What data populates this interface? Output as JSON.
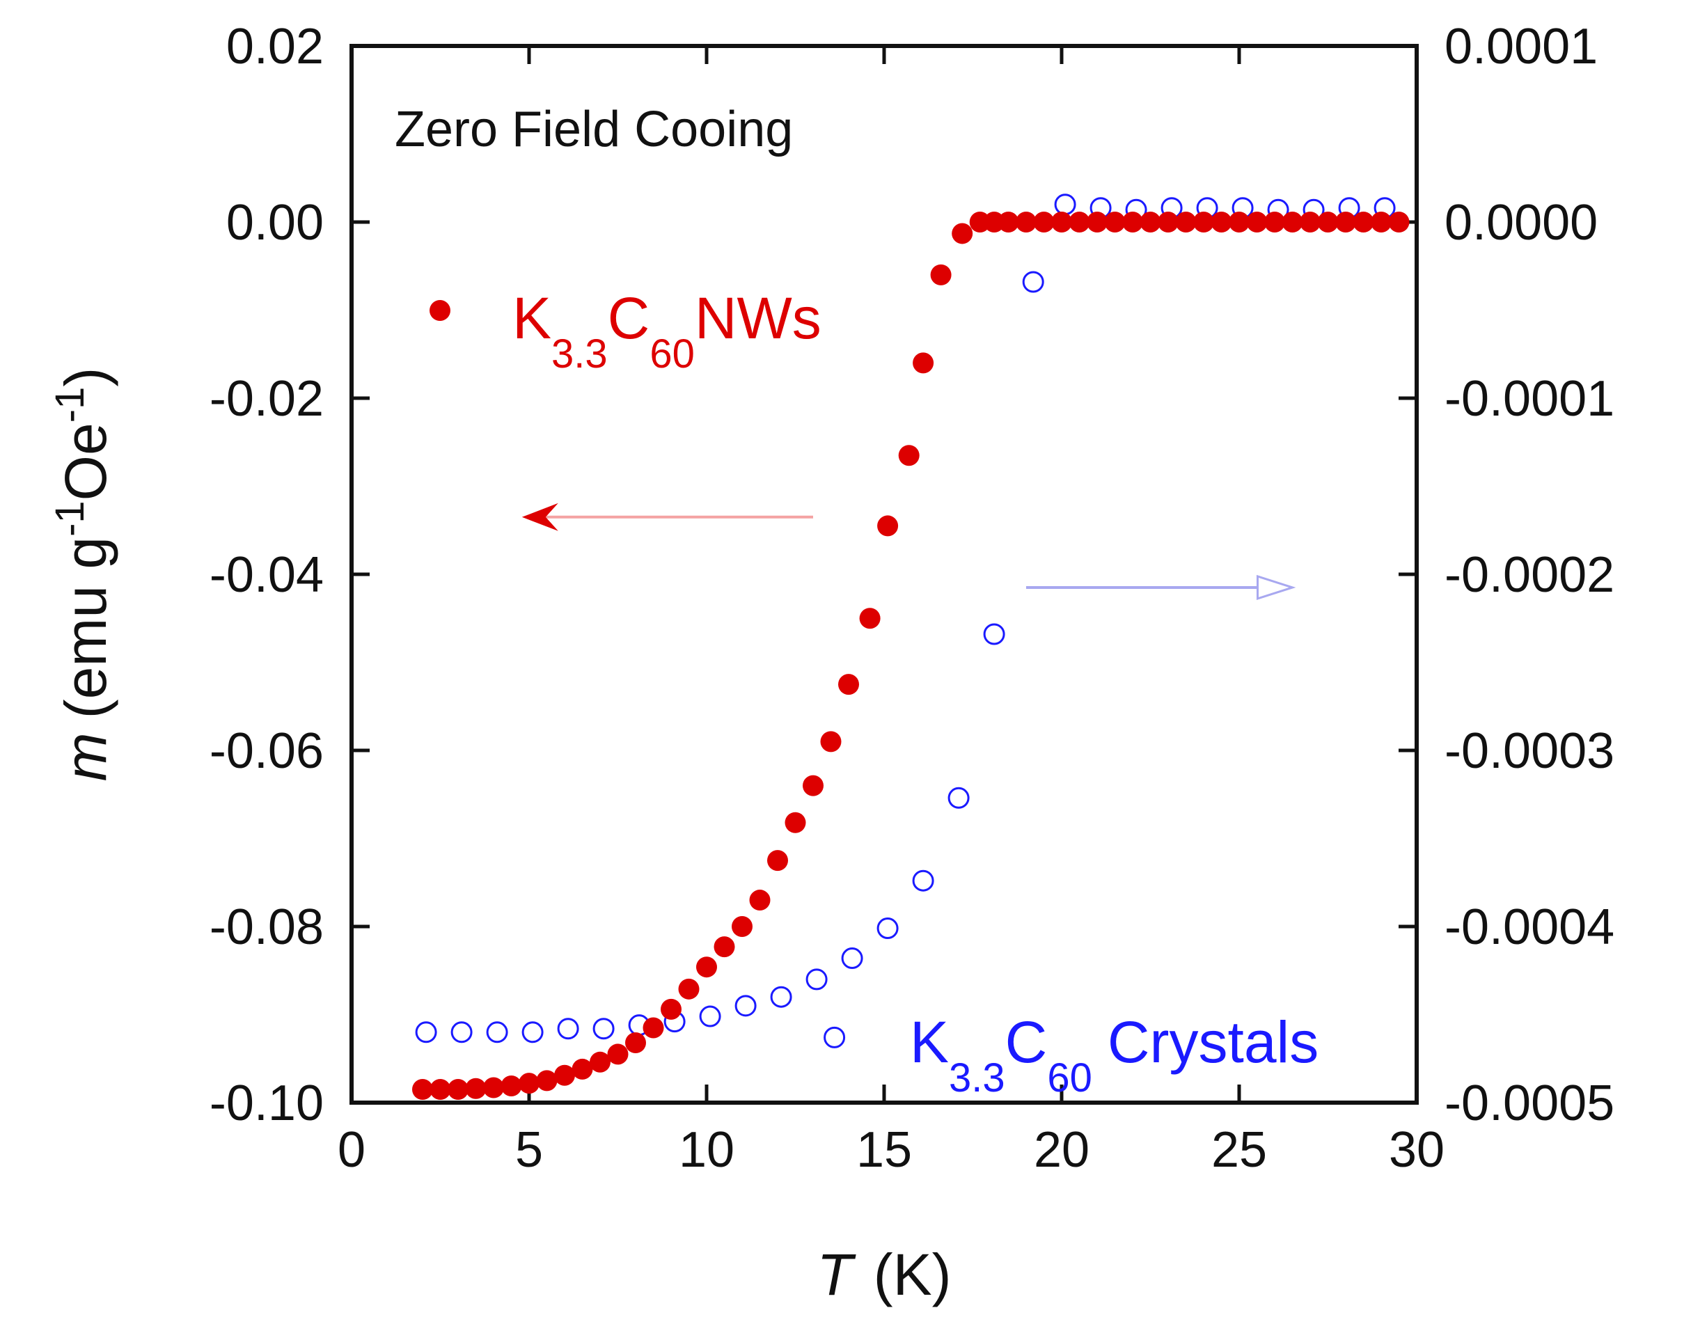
{
  "chart_data": {
    "type": "scatter",
    "title": "",
    "annotation": "Zero Field Cooing",
    "xlabel": {
      "italic": "T",
      "unit": "(K)"
    },
    "ylabel_left": {
      "italic": "m",
      "text": "(emu g",
      "sup1": "-1",
      "text2": "Oe",
      "sup2": "-1",
      "close": ")"
    },
    "xlim": [
      0,
      30
    ],
    "ylim_left": [
      -0.1,
      0.02
    ],
    "ylim_right": [
      -0.0005,
      0.0001
    ],
    "xticks": [
      "0",
      "5",
      "10",
      "15",
      "20",
      "25",
      "30"
    ],
    "xtick_values": [
      0,
      5,
      10,
      15,
      20,
      25,
      30
    ],
    "yticks_left": [
      "-0.10",
      "-0.08",
      "-0.06",
      "-0.04",
      "-0.02",
      "0.00",
      "0.02"
    ],
    "yticks_left_values": [
      -0.1,
      -0.08,
      -0.06,
      -0.04,
      -0.02,
      0.0,
      0.02
    ],
    "yticks_right": [
      "-0.0005",
      "-0.0004",
      "-0.0003",
      "-0.0002",
      "-0.0001",
      "0.0000",
      "0.0001"
    ],
    "yticks_right_values": [
      -0.0005,
      -0.0004,
      -0.0003,
      -0.0002,
      -0.0001,
      0.0,
      0.0001
    ],
    "grid": false,
    "colors": {
      "nw": "#dd0000",
      "crystal": "#1a1aff",
      "nw_arrow": "#f4a3a3",
      "crystal_arrow": "#a8a8f0",
      "axis": "#111111"
    },
    "series": [
      {
        "name": "nanowires",
        "legend": {
          "main": "K",
          "sub1": "3.3",
          "mid": "C",
          "sub2": "60",
          "tail": "NWs"
        },
        "marker": "filled-circle",
        "axis": "left",
        "x": [
          2.0,
          2.5,
          3.0,
          3.5,
          4.0,
          4.5,
          5.0,
          5.5,
          6.0,
          6.5,
          7.0,
          7.5,
          8.0,
          8.5,
          9.0,
          9.5,
          10.0,
          10.5,
          11.0,
          11.5,
          12.0,
          12.5,
          13.0,
          13.5,
          14.0,
          14.6,
          15.1,
          15.7,
          16.1,
          16.6,
          17.2,
          17.7,
          18.1,
          18.5,
          19.0,
          19.5,
          20.0,
          20.5,
          21.0,
          21.5,
          22.0,
          22.5,
          23.0,
          23.5,
          24.0,
          24.5,
          25.0,
          25.5,
          26.0,
          26.5,
          27.0,
          27.5,
          28.0,
          28.5,
          29.0,
          29.5
        ],
        "y": [
          -0.0985,
          -0.0985,
          -0.0985,
          -0.0984,
          -0.0983,
          -0.0981,
          -0.0978,
          -0.0975,
          -0.0969,
          -0.0962,
          -0.0954,
          -0.0945,
          -0.0932,
          -0.0915,
          -0.0894,
          -0.0871,
          -0.0846,
          -0.0823,
          -0.08,
          -0.077,
          -0.0725,
          -0.0682,
          -0.064,
          -0.059,
          -0.0525,
          -0.045,
          -0.0345,
          -0.0265,
          -0.016,
          -0.006,
          -0.0013,
          0.0,
          0.0,
          0.0,
          0.0,
          0.0,
          0.0,
          0.0,
          0.0,
          0.0,
          0.0,
          0.0,
          0.0,
          0.0,
          0.0,
          0.0,
          0.0,
          0.0,
          0.0,
          0.0,
          0.0,
          0.0,
          0.0,
          0.0,
          0.0,
          0.0
        ]
      },
      {
        "name": "crystals",
        "legend": {
          "main": "K",
          "sub1": "3.3",
          "mid": "C",
          "sub2": "60",
          "tail": "Crystals"
        },
        "marker": "open-circle",
        "axis": "right",
        "x": [
          2.1,
          3.1,
          4.1,
          5.1,
          6.1,
          7.1,
          8.1,
          9.1,
          10.1,
          11.1,
          12.1,
          13.1,
          13.6,
          14.1,
          15.1,
          16.1,
          17.1,
          18.1,
          19.2,
          20.1,
          21.1,
          22.1,
          23.1,
          24.1,
          25.1,
          26.1,
          27.1,
          28.1,
          29.1
        ],
        "y": [
          -0.00046,
          -0.00046,
          -0.00046,
          -0.00046,
          -0.000458,
          -0.000458,
          -0.000456,
          -0.000454,
          -0.000451,
          -0.000445,
          -0.00044,
          -0.00043,
          -0.000463,
          -0.000418,
          -0.000401,
          -0.000374,
          -0.000327,
          -0.000234,
          -3.4e-05,
          1e-05,
          8e-06,
          7e-06,
          8e-06,
          8e-06,
          8e-06,
          7e-06,
          7e-06,
          8e-06,
          8e-06
        ]
      }
    ],
    "arrows": [
      {
        "name": "nanowires-left-axis-arrow",
        "direction": "left",
        "x_from": 13.0,
        "x_to": 4.8,
        "y_left": -0.0335
      },
      {
        "name": "crystals-right-axis-arrow",
        "direction": "right",
        "x_from": 19.0,
        "x_to": 26.5,
        "y_left": -0.0415
      }
    ]
  }
}
